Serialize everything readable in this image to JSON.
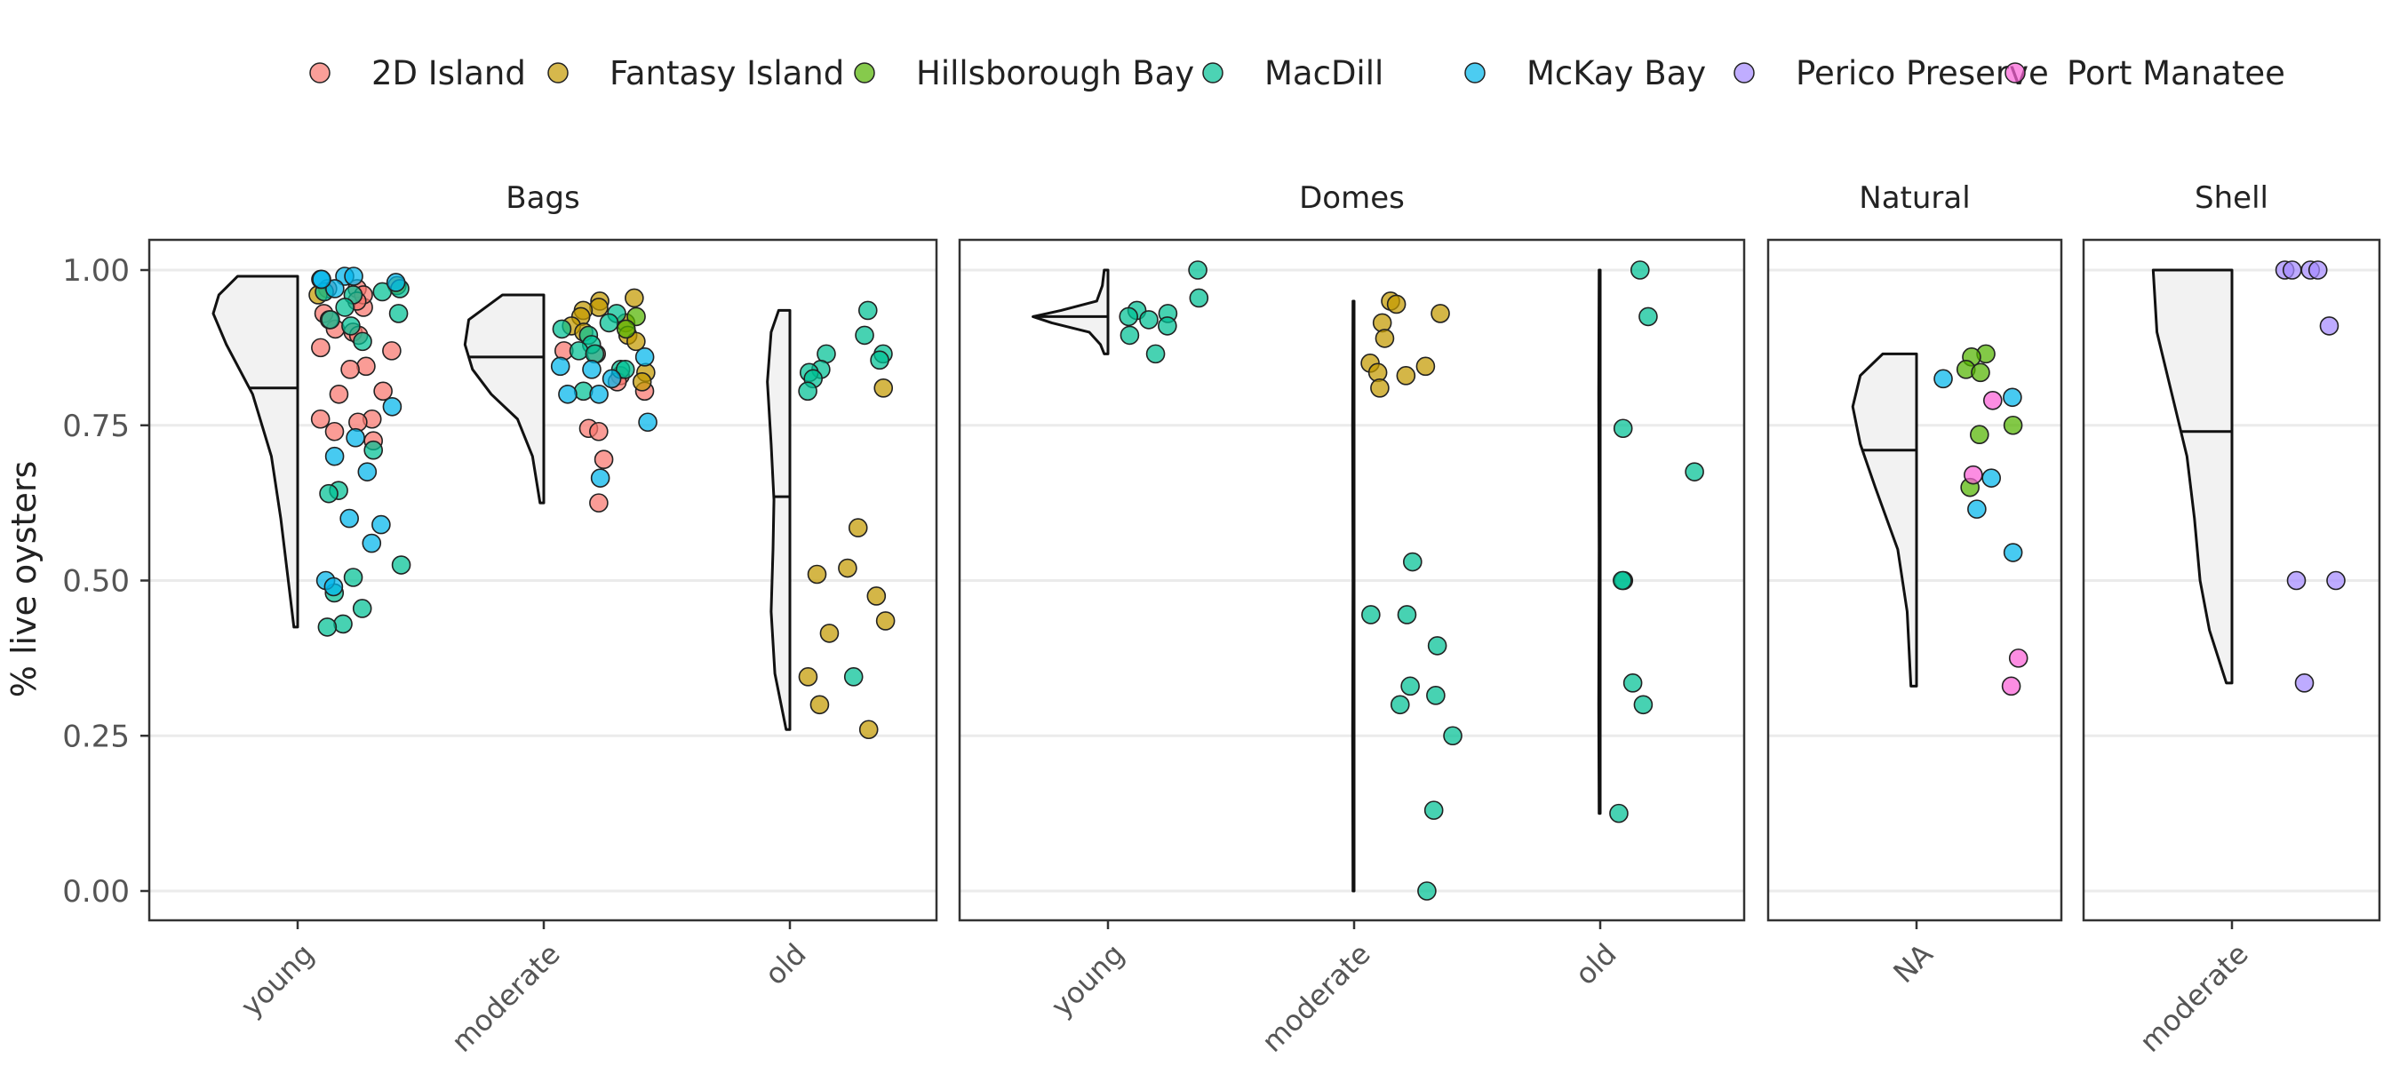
{
  "chart_data": {
    "type": "scatter",
    "subtype": "faceted half-violin (raincloud) plot with jittered points",
    "title": "",
    "xlabel": "",
    "ylabel": "% live oysters",
    "ylim": [
      0,
      1
    ],
    "y_ticks": [
      "0.00",
      "0.25",
      "0.50",
      "0.75",
      "1.00"
    ],
    "grid": "horizontal",
    "legend_position": "top",
    "series": [
      {
        "name": "2D Island",
        "color": "#F8766D"
      },
      {
        "name": "Fantasy Island",
        "color": "#C49A00"
      },
      {
        "name": "Hillsborough Bay",
        "color": "#53B400"
      },
      {
        "name": "MacDill",
        "color": "#00C094"
      },
      {
        "name": "McKay Bay",
        "color": "#00B6EB"
      },
      {
        "name": "Perico Preserve",
        "color": "#A58AFF"
      },
      {
        "name": "Port Manatee",
        "color": "#FB61D7"
      }
    ],
    "panels": [
      {
        "title": "Bags",
        "categories": [
          "young",
          "moderate",
          "old"
        ],
        "groups": [
          {
            "category": "young",
            "median": 0.81,
            "min": 0.425,
            "max": 0.99,
            "violin": [
              [
                0.425,
                0.02
              ],
              [
                0.5,
                0.05
              ],
              [
                0.6,
                0.09
              ],
              [
                0.7,
                0.14
              ],
              [
                0.8,
                0.24
              ],
              [
                0.88,
                0.38
              ],
              [
                0.93,
                0.45
              ],
              [
                0.96,
                0.42
              ],
              [
                0.99,
                0.32
              ]
            ],
            "points": [
              {
                "s": "2D Island",
                "v": [
                  0.97,
                  0.94,
                  0.93,
                  0.905,
                  0.9,
                  0.895,
                  0.875,
                  0.87,
                  0.845,
                  0.84,
                  0.8,
                  0.805,
                  0.76,
                  0.76,
                  0.755,
                  0.74,
                  0.725,
                  0.97,
                  0.96,
                  0.95,
                  0.92
                ]
              },
              {
                "s": "Fantasy Island",
                "v": [
                  0.96,
                  0.975
                ]
              },
              {
                "s": "MacDill",
                "v": [
                  0.97,
                  0.965,
                  0.96,
                  0.93,
                  0.92,
                  0.91,
                  0.885,
                  0.71,
                  0.645,
                  0.64,
                  0.525,
                  0.505,
                  0.48,
                  0.455,
                  0.43,
                  0.425,
                  0.965,
                  0.94
                ]
              },
              {
                "s": "McKay Bay",
                "v": [
                  0.99,
                  0.985,
                  0.98,
                  0.97,
                  0.78,
                  0.73,
                  0.7,
                  0.675,
                  0.6,
                  0.59,
                  0.56,
                  0.5,
                  0.49,
                  0.99,
                  0.985
                ]
              }
            ]
          },
          {
            "category": "moderate",
            "median": 0.86,
            "min": 0.625,
            "max": 0.96,
            "violin": [
              [
                0.625,
                0.02
              ],
              [
                0.7,
                0.06
              ],
              [
                0.76,
                0.14
              ],
              [
                0.8,
                0.28
              ],
              [
                0.84,
                0.38
              ],
              [
                0.88,
                0.42
              ],
              [
                0.92,
                0.4
              ],
              [
                0.96,
                0.22
              ]
            ],
            "points": [
              {
                "s": "2D Island",
                "v": [
                  0.87,
                  0.865,
                  0.83,
                  0.82,
                  0.805,
                  0.745,
                  0.74,
                  0.695,
                  0.625
                ]
              },
              {
                "s": "Fantasy Island",
                "v": [
                  0.955,
                  0.95,
                  0.94,
                  0.935,
                  0.925,
                  0.915,
                  0.91,
                  0.9,
                  0.895,
                  0.885,
                  0.835,
                  0.82
                ]
              },
              {
                "s": "Hillsborough Bay",
                "v": [
                  0.925,
                  0.905
                ]
              },
              {
                "s": "MacDill",
                "v": [
                  0.93,
                  0.915,
                  0.905,
                  0.895,
                  0.88,
                  0.87,
                  0.865,
                  0.84,
                  0.84,
                  0.805
                ]
              },
              {
                "s": "McKay Bay",
                "v": [
                  0.86,
                  0.845,
                  0.84,
                  0.825,
                  0.8,
                  0.8,
                  0.755,
                  0.665
                ]
              }
            ]
          },
          {
            "category": "old",
            "median": 0.635,
            "min": 0.26,
            "max": 0.935,
            "violin": [
              [
                0.26,
                0.02
              ],
              [
                0.35,
                0.08
              ],
              [
                0.45,
                0.1
              ],
              [
                0.55,
                0.09
              ],
              [
                0.63,
                0.085
              ],
              [
                0.72,
                0.1
              ],
              [
                0.82,
                0.12
              ],
              [
                0.9,
                0.1
              ],
              [
                0.935,
                0.06
              ]
            ],
            "points": [
              {
                "s": "Fantasy Island",
                "v": [
                  0.81,
                  0.585,
                  0.52,
                  0.51,
                  0.475,
                  0.435,
                  0.415,
                  0.345,
                  0.3,
                  0.26
                ]
              },
              {
                "s": "MacDill",
                "v": [
                  0.935,
                  0.895,
                  0.865,
                  0.865,
                  0.855,
                  0.84,
                  0.835,
                  0.825,
                  0.805,
                  0.345
                ]
              }
            ]
          }
        ]
      },
      {
        "title": "Domes",
        "categories": [
          "young",
          "moderate",
          "old"
        ],
        "groups": [
          {
            "category": "young",
            "median": 0.925,
            "min": 0.865,
            "max": 1.0,
            "violin": [
              [
                0.865,
                0.02
              ],
              [
                0.88,
                0.04
              ],
              [
                0.9,
                0.1
              ],
              [
                0.915,
                0.3
              ],
              [
                0.925,
                0.4
              ],
              [
                0.935,
                0.25
              ],
              [
                0.95,
                0.06
              ],
              [
                0.975,
                0.03
              ],
              [
                1.0,
                0.02
              ]
            ],
            "points": [
              {
                "s": "MacDill",
                "v": [
                  1.0,
                  0.955,
                  0.935,
                  0.93,
                  0.925,
                  0.92,
                  0.91,
                  0.895,
                  0.865
                ]
              }
            ]
          },
          {
            "category": "moderate",
            "median": 0.0,
            "min": 0.0,
            "max": 0.95,
            "violin": [
              [
                0.0,
                0.006
              ],
              [
                0.25,
                0.008
              ],
              [
                0.5,
                0.006
              ],
              [
                0.75,
                0.008
              ],
              [
                0.95,
                0.006
              ]
            ],
            "points": [
              {
                "s": "Fantasy Island",
                "v": [
                  0.95,
                  0.945,
                  0.93,
                  0.915,
                  0.89,
                  0.85,
                  0.845,
                  0.835,
                  0.83,
                  0.81
                ]
              },
              {
                "s": "MacDill",
                "v": [
                  0.53,
                  0.445,
                  0.445,
                  0.395,
                  0.33,
                  0.315,
                  0.3,
                  0.25,
                  0.13,
                  0.0
                ]
              }
            ]
          },
          {
            "category": "old",
            "median": 0.125,
            "min": 0.125,
            "max": 1.0,
            "violin": [
              [
                0.125,
                0.006
              ],
              [
                0.3,
                0.008
              ],
              [
                0.55,
                0.006
              ],
              [
                0.8,
                0.008
              ],
              [
                1.0,
                0.006
              ]
            ],
            "points": [
              {
                "s": "MacDill",
                "v": [
                  1.0,
                  0.925,
                  0.745,
                  0.675,
                  0.5,
                  0.5,
                  0.335,
                  0.3,
                  0.125
                ]
              }
            ]
          }
        ]
      },
      {
        "title": "Natural",
        "categories": [
          "NA"
        ],
        "groups": [
          {
            "category": "NA",
            "median": 0.71,
            "min": 0.33,
            "max": 0.865,
            "violin": [
              [
                0.33,
                0.03
              ],
              [
                0.45,
                0.05
              ],
              [
                0.55,
                0.1
              ],
              [
                0.65,
                0.22
              ],
              [
                0.72,
                0.3
              ],
              [
                0.78,
                0.34
              ],
              [
                0.83,
                0.3
              ],
              [
                0.865,
                0.18
              ]
            ],
            "points": [
              {
                "s": "Hillsborough Bay",
                "v": [
                  0.865,
                  0.86,
                  0.84,
                  0.835,
                  0.75,
                  0.735,
                  0.65
                ]
              },
              {
                "s": "McKay Bay",
                "v": [
                  0.825,
                  0.795,
                  0.665,
                  0.615,
                  0.545
                ]
              },
              {
                "s": "Port Manatee",
                "v": [
                  0.79,
                  0.67,
                  0.375,
                  0.33
                ]
              }
            ]
          }
        ]
      },
      {
        "title": "Shell",
        "categories": [
          "moderate"
        ],
        "groups": [
          {
            "category": "moderate",
            "median": 0.74,
            "min": 0.335,
            "max": 1.0,
            "violin": [
              [
                0.335,
                0.03
              ],
              [
                0.42,
                0.12
              ],
              [
                0.5,
                0.17
              ],
              [
                0.6,
                0.2
              ],
              [
                0.7,
                0.24
              ],
              [
                0.8,
                0.32
              ],
              [
                0.9,
                0.4
              ],
              [
                1.0,
                0.42
              ]
            ],
            "points": [
              {
                "s": "Perico Preserve",
                "v": [
                  1.0,
                  1.0,
                  1.0,
                  1.0,
                  0.91,
                  0.5,
                  0.5,
                  0.335
                ]
              }
            ]
          }
        ]
      }
    ]
  }
}
